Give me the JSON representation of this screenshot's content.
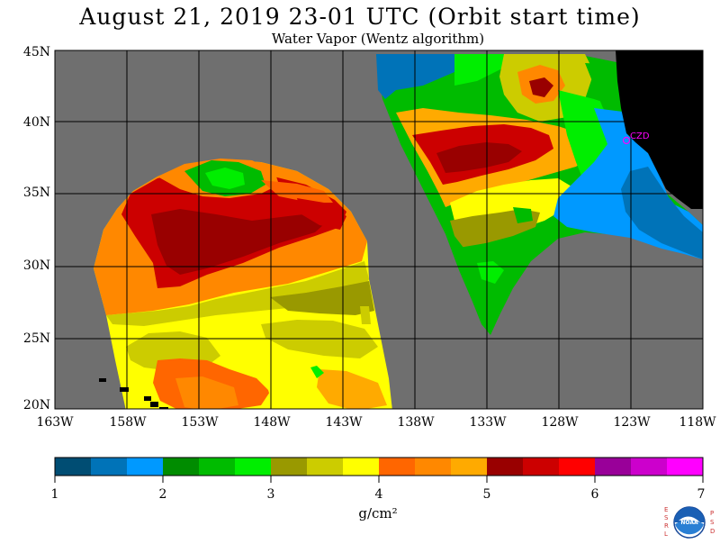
{
  "title": "August 21, 2019  23-01 UTC  (Orbit start time)",
  "subtitle": "Water Vapor (Wentz algorithm)",
  "lat_labels": [
    "45N",
    "40N",
    "35N",
    "30N",
    "25N",
    "20N"
  ],
  "lon_labels": [
    "163W",
    "158W",
    "153W",
    "148W",
    "143W",
    "138W",
    "133W",
    "128W",
    "123W",
    "118W"
  ],
  "station_label": "CZD",
  "colorbar": {
    "labels": [
      "1",
      "2",
      "3",
      "4",
      "5",
      "6",
      "7"
    ],
    "unit": "g/cm²",
    "colors": [
      "#004d73",
      "#0073b8",
      "#0099ff",
      "#008c00",
      "#00bb00",
      "#00ee00",
      "#999900",
      "#cccc00",
      "#ffff00",
      "#ff6600",
      "#ff8800",
      "#ffaa00",
      "#990000",
      "#cc0000",
      "#ff0000",
      "#990099",
      "#cc00cc",
      "#ff00ff"
    ]
  },
  "logo": {
    "left_letters": "ESRL",
    "right_letters": "PSD",
    "center": "NOAA"
  },
  "colors": {
    "background_land_mask": "#6f6f6f",
    "land": "#000000",
    "station": "#ff00ff"
  }
}
